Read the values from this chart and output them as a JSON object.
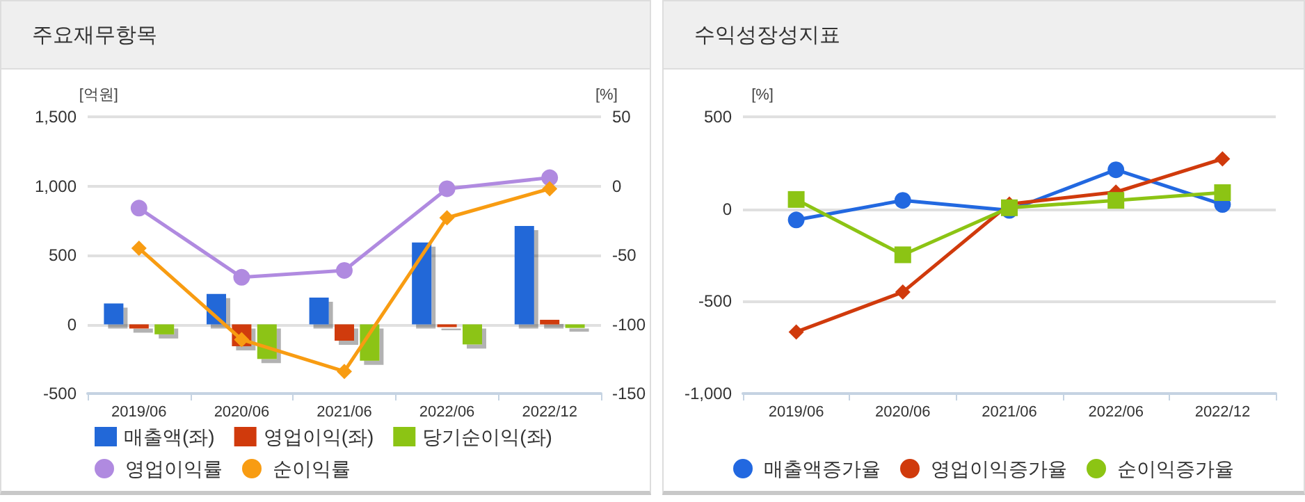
{
  "chart_data": [
    {
      "type": "bar",
      "title": "주요재무항목",
      "ylabel": "[억원]",
      "y2label": "[%]",
      "categories": [
        "2019/06",
        "2020/06",
        "2021/06",
        "2022/06",
        "2022/12"
      ],
      "series": [
        {
          "name": "매출액(좌)",
          "color": "#2268d8",
          "values": [
            151,
            220,
            194,
            592,
            711
          ]
        },
        {
          "name": "영업이익(좌)",
          "color": "#d03a0c",
          "values": [
            -30,
            -158,
            -118,
            -20,
            33
          ]
        },
        {
          "name": "당기순이익(좌)",
          "color": "#8cc414",
          "values": [
            -72,
            -250,
            -263,
            -145,
            -26
          ]
        },
        {
          "name": "영업이익률",
          "type": "line",
          "axis": "y2",
          "marker": "circle",
          "color": "#b08ae0",
          "values": [
            -16,
            -66,
            -61,
            -2,
            6
          ]
        },
        {
          "name": "순이익률",
          "type": "line",
          "axis": "y2",
          "marker": "diamond",
          "color": "#f89c12",
          "values": [
            -45,
            -111,
            -134,
            -23,
            -2
          ]
        }
      ],
      "ylim": [
        -500,
        1500
      ],
      "yticks": [
        -500,
        0,
        500,
        {
          "value": 1000,
          "label": "1,000"
        },
        {
          "value": 1500,
          "label": "1,500"
        }
      ],
      "y2lim": [
        -150,
        50
      ],
      "y2ticks": [
        -150,
        -100,
        -50,
        0,
        50
      ],
      "grid": "y",
      "legend": "bottom"
    },
    {
      "type": "line",
      "title": "수익성장성지표",
      "ylabel": "[%]",
      "categories": [
        "2019/06",
        "2020/06",
        "2021/06",
        "2022/06",
        "2022/12"
      ],
      "series": [
        {
          "name": "매출액증가율",
          "marker": "circle",
          "color": "#2268e0",
          "values": [
            -59,
            47,
            -7,
            213,
            25
          ]
        },
        {
          "name": "영업이익증가율",
          "marker": "diamond",
          "color": "#d03a0c",
          "values": [
            -666,
            -450,
            27,
            92,
            272
          ]
        },
        {
          "name": "순이익증가율",
          "marker": "square",
          "color": "#8cc414",
          "values": [
            52,
            -248,
            7,
            47,
            89
          ]
        }
      ],
      "ylim": [
        -1000,
        500
      ],
      "yticks": [
        {
          "value": -1000,
          "label": "-1,000"
        },
        -500,
        0,
        500
      ],
      "grid": "y",
      "legend": "bottom"
    }
  ]
}
